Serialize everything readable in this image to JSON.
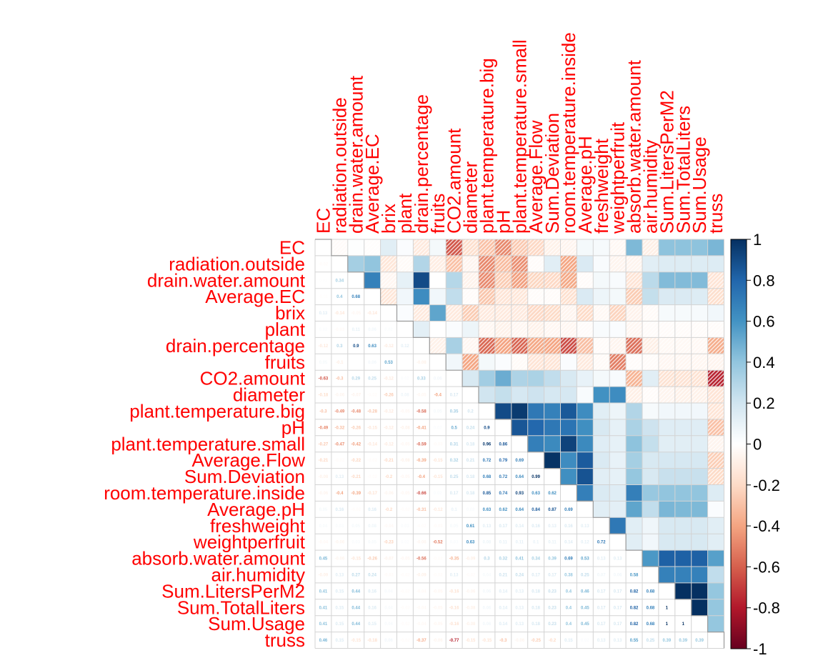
{
  "chart_data": {
    "type": "heatmap",
    "title": "",
    "variables": [
      "EC",
      "radiation.outside",
      "drain.water.amount",
      "Average.EC",
      "brix",
      "plant",
      "drain.percentage",
      "fruits",
      "CO2.amount",
      "diameter",
      "plant.temperature.big",
      "pH",
      "plant.temperature.small",
      "Average.Flow",
      "Sum.Deviation",
      "room.temperature.inside",
      "Average.pH",
      "freshweight",
      "weightperfruit",
      "absorb.water.amount",
      "air.humidity",
      "Sum.LitersPerM2",
      "Sum.TotalLiters",
      "Sum.Usage",
      "truss"
    ],
    "top_labels": [
      "EC",
      "radiation.outside",
      "drain.water.amount",
      "Average.EC",
      "brix",
      "plant",
      "drain.percentage",
      "fruits",
      "CO2.amount",
      "diameter",
      "plant.temperature.big",
      "pH",
      "plant.temperature.small",
      "Average.Flow",
      "Sum.Deviation",
      "room.temperature.inside",
      "Average.pH",
      "freshweight",
      "weightperfruit",
      "absorb.water.amount",
      "air.humidity",
      "Sum.LitersPerM2",
      "Sum.TotalLiters",
      "Sum.Usage",
      "truss"
    ],
    "lower_triangle_matrix": [
      [],
      [
        -0.02
      ],
      [
        0.01,
        0.34
      ],
      [
        -0.01,
        0.4,
        0.68
      ],
      [
        0.13,
        -0.14,
        -0.05,
        -0.14
      ],
      [
        0.02,
        -0.03,
        0.11,
        0.06,
        0.02
      ],
      [
        -0.12,
        0.3,
        0.9,
        0.63,
        -0.12,
        0.12
      ],
      [
        0.05,
        -0.1,
        0.0,
        0.06,
        0.53,
        0.0,
        -0.08
      ],
      [
        -0.63,
        -0.3,
        0.29,
        0.25,
        -0.12,
        0.02,
        0.33,
        0.06
      ],
      [
        -0.18,
        -0.06,
        -0.07,
        -0.02,
        -0.26,
        0.08,
        -0.05,
        -0.4,
        0.17
      ],
      [
        -0.3,
        -0.49,
        -0.48,
        -0.28,
        -0.12,
        -0.05,
        -0.58,
        0.05,
        0.35,
        0.2
      ],
      [
        -0.49,
        -0.32,
        -0.26,
        -0.15,
        -0.12,
        -0.08,
        -0.41,
        0.02,
        0.5,
        0.24,
        0.9
      ],
      [
        -0.27,
        -0.47,
        -0.42,
        -0.14,
        -0.12,
        -0.05,
        -0.59,
        -0.03,
        0.31,
        0.18,
        0.96,
        0.86
      ],
      [
        -0.21,
        -0.02,
        -0.22,
        -0.02,
        -0.21,
        -0.08,
        -0.39,
        -0.15,
        0.32,
        0.21,
        0.72,
        0.79,
        0.69
      ],
      [
        -0.08,
        0.13,
        -0.21,
        -0.02,
        -0.2,
        -0.05,
        -0.4,
        -0.15,
        0.25,
        0.18,
        0.68,
        0.72,
        0.64,
        0.99
      ],
      [
        -0.06,
        -0.4,
        -0.39,
        -0.17,
        -0.06,
        -0.05,
        -0.66,
        0.02,
        0.17,
        0.18,
        0.85,
        0.74,
        0.93,
        0.63,
        0.62
      ],
      [
        0.05,
        0.16,
        -0.02,
        0.16,
        -0.2,
        -0.02,
        -0.31,
        -0.12,
        0.1,
        0.03,
        0.63,
        0.62,
        0.64,
        0.84,
        0.87,
        0.69
      ],
      [
        0.04,
        0.03,
        0.05,
        0.08,
        -0.04,
        0.03,
        -0.02,
        -0.03,
        0.05,
        0.61,
        0.13,
        0.17,
        0.14,
        0.16,
        0.13,
        0.16,
        0.13
      ],
      [
        -0.04,
        -0.06,
        0.03,
        0.05,
        -0.23,
        0.02,
        -0.06,
        -0.52,
        0.03,
        0.63,
        0.08,
        0.11,
        0.11,
        0.1,
        0.11,
        0.14,
        0.12,
        0.72
      ],
      [
        0.45,
        -0.06,
        -0.15,
        -0.26,
        -0.07,
        -0.05,
        -0.56,
        -0.02,
        -0.35,
        -0.09,
        0.3,
        0.32,
        0.41,
        0.34,
        0.39,
        0.69,
        0.53,
        0.13,
        0.13
      ],
      [
        -0.09,
        0.13,
        0.27,
        0.24,
        -0.03,
        -0.02,
        -0.09,
        -0.02,
        0.13,
        -0.02,
        0.04,
        0.21,
        0.24,
        0.17,
        0.17,
        0.38,
        0.25,
        0.07,
        0.06,
        0.58
      ],
      [
        0.41,
        0.15,
        0.44,
        0.16,
        0.04,
        -0.02,
        -0.04,
        -0.05,
        -0.16,
        -0.06,
        0.06,
        0.14,
        0.13,
        0.18,
        0.23,
        0.4,
        0.46,
        0.17,
        0.17,
        0.82,
        0.68
      ],
      [
        0.41,
        0.15,
        0.44,
        0.16,
        0.04,
        -0.02,
        -0.04,
        -0.05,
        -0.16,
        -0.08,
        0.06,
        0.14,
        0.13,
        0.18,
        0.23,
        0.4,
        0.45,
        0.17,
        0.17,
        0.82,
        0.68,
        1
      ],
      [
        0.41,
        0.15,
        0.44,
        0.15,
        0.04,
        -0.02,
        -0.04,
        -0.05,
        -0.16,
        -0.08,
        0.06,
        0.14,
        0.13,
        0.18,
        0.23,
        0.4,
        0.45,
        0.17,
        0.17,
        0.82,
        0.68,
        1,
        1
      ],
      [
        0.46,
        0.15,
        -0.15,
        -0.18,
        0.06,
        -0.02,
        -0.37,
        -0.06,
        -0.77,
        -0.15,
        -0.15,
        -0.3,
        -0.06,
        -0.25,
        -0.2,
        0.15,
        0.02,
        0.13,
        0.13,
        0.55,
        0.25,
        0.39,
        0.39,
        0.39
      ]
    ],
    "colorbar": {
      "range": [
        -1,
        1
      ],
      "tick_labels": [
        "1",
        "0.8",
        "0.6",
        "0.4",
        "0.2",
        "0",
        "-0.2",
        "-0.4",
        "-0.6",
        "-0.8",
        "-1"
      ]
    },
    "colors": {
      "label_red": "#ff0000",
      "grid_gray": "#d3d3d3",
      "scale": [
        "#67001f",
        "#b2182b",
        "#d6604d",
        "#f4a582",
        "#fddbc7",
        "#ffffff",
        "#d1e5f0",
        "#92c5de",
        "#4393c3",
        "#2166ac",
        "#053061"
      ]
    }
  }
}
